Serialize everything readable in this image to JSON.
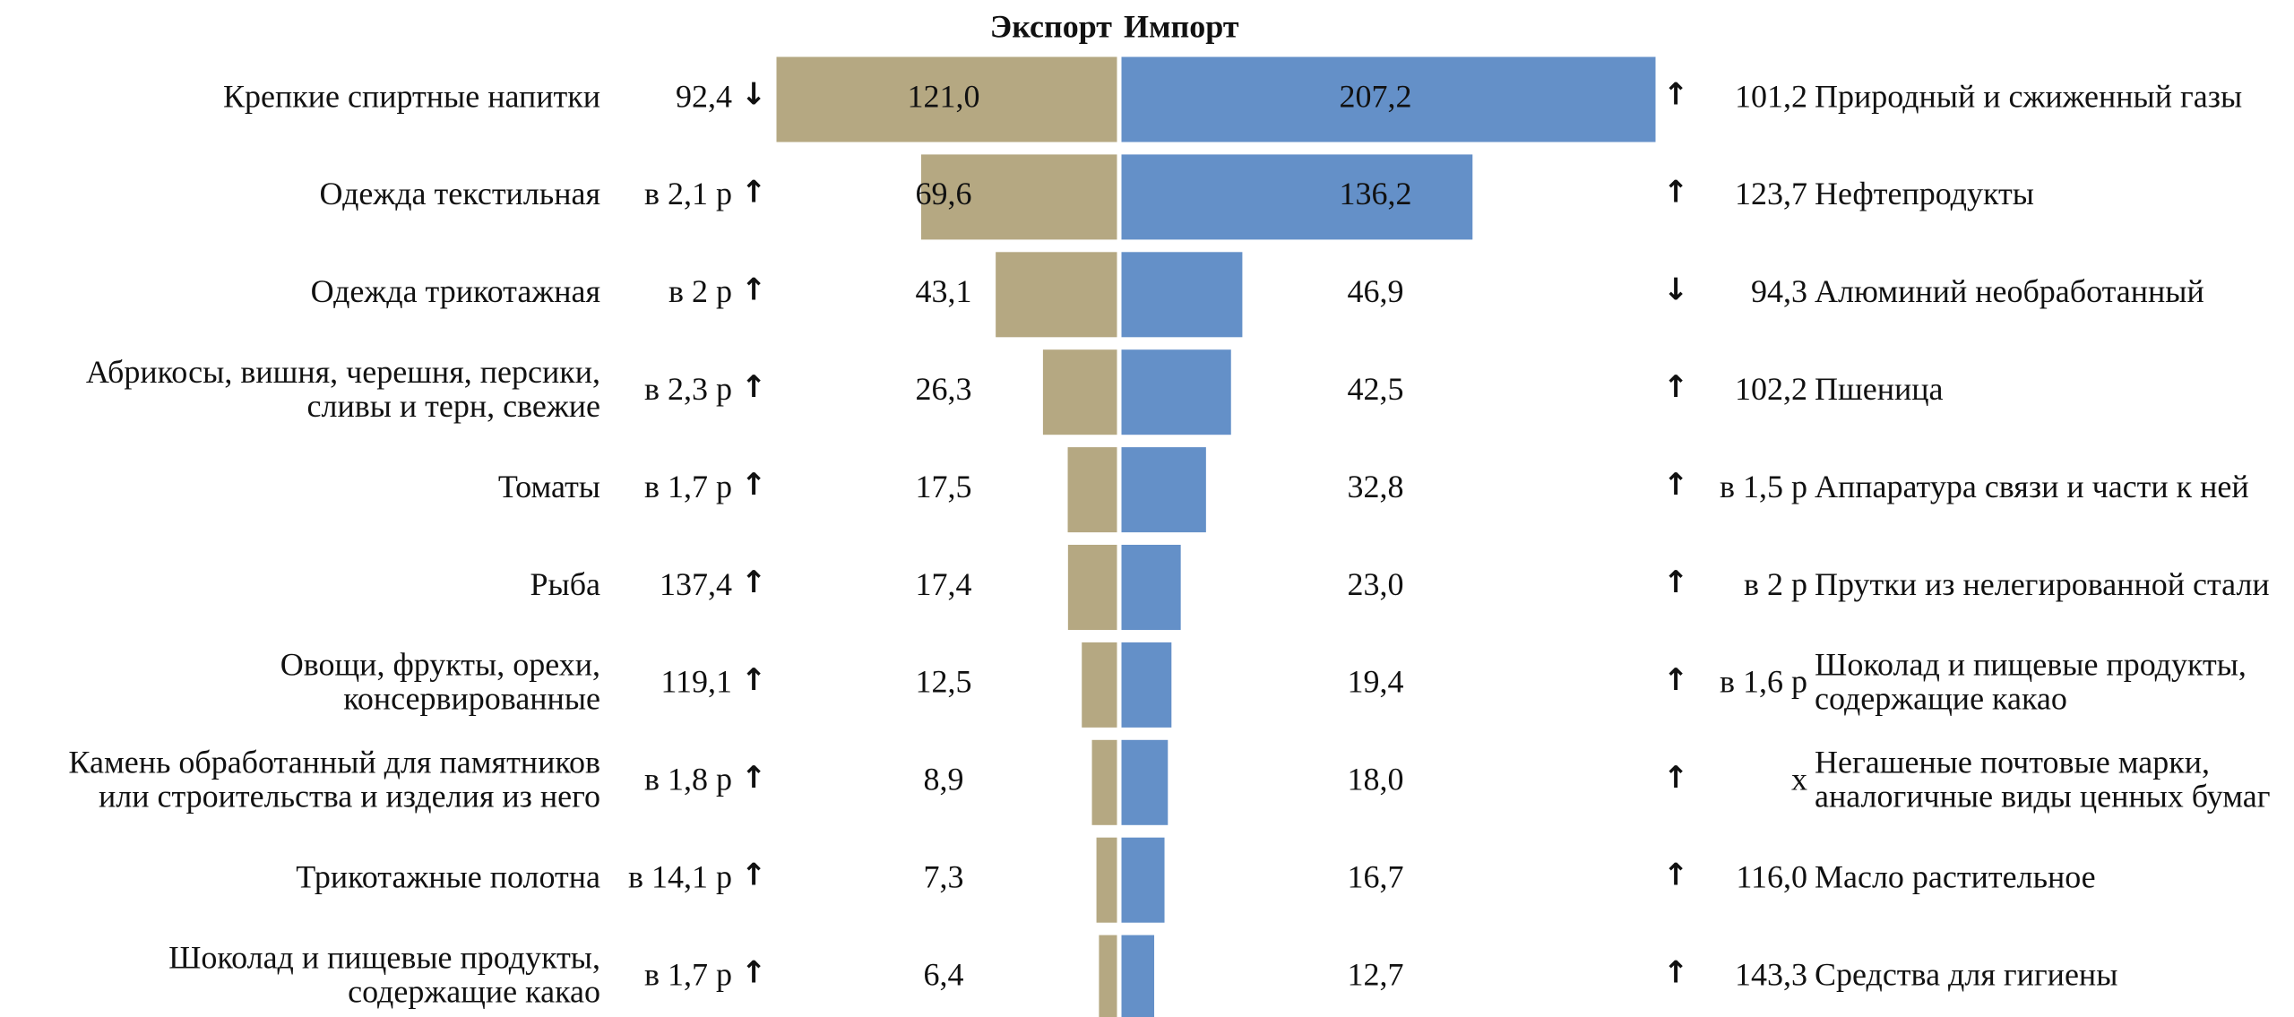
{
  "chart_data": {
    "type": "butterfly",
    "series": [
      {
        "name": "Экспорт",
        "color": "#b5a882",
        "categories": [
          [
            "Крепкие спиртные напитки"
          ],
          [
            "Одежда текстильная"
          ],
          [
            "Одежда трикотажная"
          ],
          [
            "Абрикосы, вишня, черешня, персики,",
            "сливы и терн, свежие"
          ],
          [
            "Томаты"
          ],
          [
            "Рыба"
          ],
          [
            "Овощи, фрукты, орехи,",
            "консервированные"
          ],
          [
            "Камень обработанный для памятников",
            "или строительства и изделия из него"
          ],
          [
            "Трикотажные полотна"
          ],
          [
            "Шоколад и пищевые продукты,",
            "содержащие какао"
          ]
        ],
        "values": [
          121.0,
          69.6,
          43.1,
          26.3,
          17.5,
          17.4,
          12.5,
          8.9,
          7.3,
          6.4
        ],
        "value_labels": [
          "121,0",
          "69,6",
          "43,1",
          "26,3",
          "17,5",
          "17,4",
          "12,5",
          "8,9",
          "7,3",
          "6,4"
        ],
        "change": [
          "92,4",
          "в 2,1 р",
          "в 2 р",
          "в 2,3 р",
          "в 1,7 р",
          "137,4",
          "119,1",
          "в 1,8 р",
          "в 14,1 р",
          "в 1,7 р"
        ],
        "trend": [
          "↓",
          "↑",
          "↑",
          "↑",
          "↑",
          "↑",
          "↑",
          "↑",
          "↑",
          "↑"
        ]
      },
      {
        "name": "Импорт",
        "color": "#6490c8",
        "categories": [
          [
            "Природный и сжиженный газы"
          ],
          [
            "Нефтепродукты"
          ],
          [
            "Алюминий необработанный"
          ],
          [
            "Пшеница"
          ],
          [
            "Аппаратура связи и части к ней"
          ],
          [
            "Прутки из нелегированной стали"
          ],
          [
            "Шоколад и пищевые продукты,",
            "содержащие какао"
          ],
          [
            "Негашеные почтовые марки,",
            "аналогичные виды ценных бумаг"
          ],
          [
            "Масло растительное"
          ],
          [
            "Средства для гигиены"
          ]
        ],
        "values": [
          207.2,
          136.2,
          46.9,
          42.5,
          32.8,
          23.0,
          19.4,
          18.0,
          16.7,
          12.7
        ],
        "value_labels": [
          "207,2",
          "136,2",
          "46,9",
          "42,5",
          "32,8",
          "23,0",
          "19,4",
          "18,0",
          "16,7",
          "12,7"
        ],
        "change": [
          "101,2",
          "123,7",
          "94,3",
          "102,2",
          "в 1,5 р",
          "в 2 р",
          "в 1,6 р",
          "х",
          "116,0",
          "143,3"
        ],
        "trend": [
          "↑",
          "↑",
          "↓",
          "↑",
          "↑",
          "↑",
          "↑",
          "↑",
          "↑",
          "↑"
        ]
      }
    ]
  }
}
